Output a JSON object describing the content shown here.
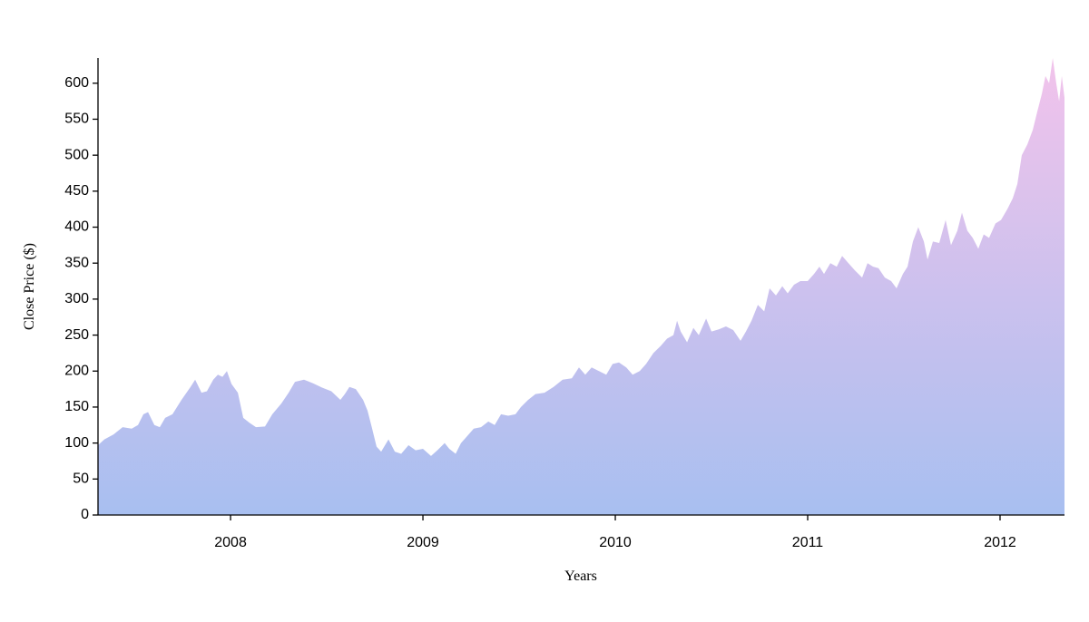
{
  "chart_data": {
    "type": "area",
    "xlabel": "Years",
    "ylabel": "Close Price ($)",
    "colors": [
      "#f2c3eb",
      "#a8bff0"
    ],
    "xlim": [
      2007.311,
      2012.335
    ],
    "xticks": [
      2008,
      2009,
      2010,
      2011,
      2012
    ],
    "ylim": [
      0,
      635
    ],
    "yticks": [
      0,
      50,
      100,
      150,
      200,
      250,
      300,
      350,
      400,
      450,
      500,
      550,
      600
    ],
    "x": [
      2007.311,
      2007.344,
      2007.392,
      2007.439,
      2007.486,
      2007.519,
      2007.547,
      2007.571,
      2007.604,
      2007.632,
      2007.66,
      2007.698,
      2007.745,
      2007.792,
      2007.816,
      2007.849,
      2007.877,
      2007.91,
      2007.934,
      2007.958,
      2007.981,
      2008.005,
      2008.038,
      2008.066,
      2008.099,
      2008.132,
      2008.179,
      2008.217,
      2008.264,
      2008.302,
      2008.335,
      2008.382,
      2008.429,
      2008.476,
      2008.524,
      2008.571,
      2008.594,
      2008.618,
      2008.651,
      2008.689,
      2008.712,
      2008.736,
      2008.759,
      2008.783,
      2008.821,
      2008.854,
      2008.887,
      2008.925,
      2008.962,
      2009.0,
      2009.042,
      2009.075,
      2009.113,
      2009.137,
      2009.17,
      2009.198,
      2009.231,
      2009.264,
      2009.302,
      2009.34,
      2009.373,
      2009.406,
      2009.443,
      2009.481,
      2009.509,
      2009.547,
      2009.585,
      2009.632,
      2009.679,
      2009.726,
      2009.774,
      2009.811,
      2009.844,
      2009.877,
      2009.915,
      2009.953,
      2009.986,
      2010.019,
      2010.057,
      2010.09,
      2010.127,
      2010.16,
      2010.198,
      2010.236,
      2010.269,
      2010.302,
      2010.321,
      2010.34,
      2010.373,
      2010.406,
      2010.434,
      2010.472,
      2010.5,
      2010.538,
      2010.575,
      2010.613,
      2010.651,
      2010.679,
      2010.708,
      2010.741,
      2010.774,
      2010.802,
      2010.835,
      2010.868,
      2010.896,
      2010.929,
      2010.962,
      2011.0,
      2011.033,
      2011.061,
      2011.085,
      2011.118,
      2011.151,
      2011.179,
      2011.212,
      2011.245,
      2011.283,
      2011.311,
      2011.34,
      2011.368,
      2011.401,
      2011.434,
      2011.462,
      2011.495,
      2011.519,
      2011.547,
      2011.575,
      2011.604,
      2011.623,
      2011.651,
      2011.684,
      2011.717,
      2011.745,
      2011.778,
      2011.802,
      2011.83,
      2011.858,
      2011.887,
      2011.915,
      2011.943,
      2011.976,
      2012.005,
      2012.038,
      2012.066,
      2012.09,
      2012.113,
      2012.142,
      2012.17,
      2012.193,
      2012.217,
      2012.236,
      2012.255,
      2012.274,
      2012.292,
      2012.307,
      2012.321,
      2012.335
    ],
    "values": [
      97,
      105,
      112,
      122,
      120,
      125,
      140,
      143,
      125,
      122,
      135,
      140,
      160,
      178,
      188,
      170,
      172,
      188,
      195,
      192,
      200,
      182,
      170,
      135,
      128,
      122,
      123,
      140,
      155,
      170,
      185,
      188,
      183,
      177,
      172,
      160,
      168,
      178,
      175,
      160,
      145,
      120,
      95,
      88,
      105,
      88,
      85,
      97,
      90,
      92,
      82,
      90,
      100,
      92,
      85,
      100,
      110,
      120,
      122,
      130,
      125,
      140,
      138,
      140,
      150,
      160,
      168,
      170,
      178,
      188,
      190,
      205,
      195,
      205,
      200,
      195,
      210,
      212,
      205,
      195,
      200,
      210,
      225,
      235,
      245,
      250,
      270,
      255,
      240,
      260,
      250,
      273,
      255,
      258,
      262,
      257,
      242,
      255,
      270,
      292,
      283,
      315,
      305,
      318,
      308,
      320,
      325,
      325,
      335,
      345,
      335,
      350,
      345,
      360,
      350,
      340,
      330,
      350,
      345,
      343,
      330,
      325,
      315,
      335,
      345,
      380,
      400,
      380,
      355,
      380,
      378,
      410,
      375,
      395,
      420,
      395,
      385,
      370,
      390,
      385,
      405,
      410,
      425,
      440,
      460,
      500,
      515,
      535,
      560,
      585,
      610,
      600,
      635,
      600,
      575,
      610,
      580
    ]
  }
}
